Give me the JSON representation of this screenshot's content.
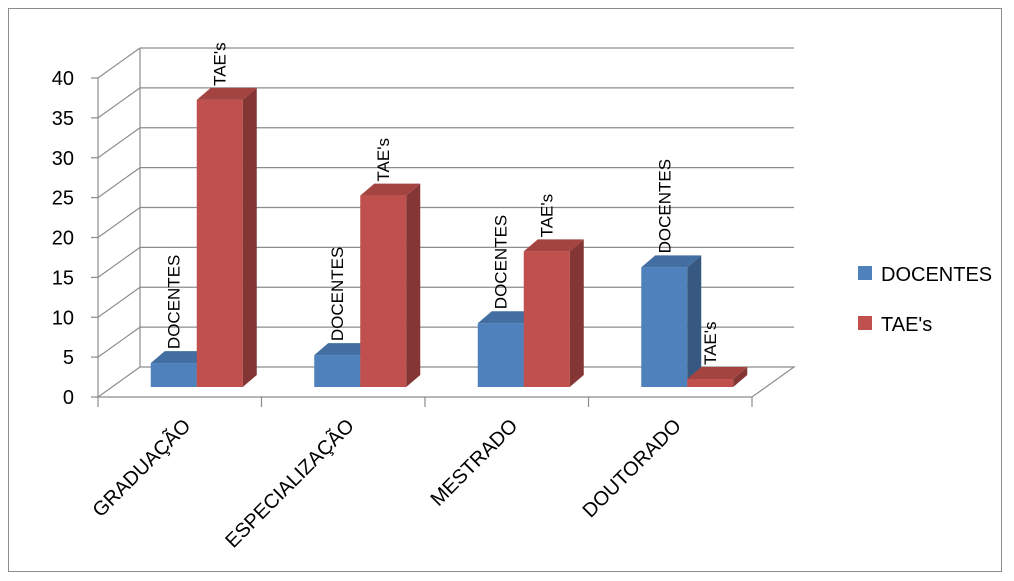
{
  "chart_data": {
    "type": "bar",
    "style": "3d-clustered-column",
    "categories": [
      "GRADUAÇÃO",
      "ESPECIALIZAÇÃO",
      "MESTRADO",
      "DOUTORADO"
    ],
    "series": [
      {
        "name": "DOCENTES",
        "values": [
          3,
          4,
          8,
          15
        ],
        "color": "#4f81bd",
        "data_label": "DOCENTES"
      },
      {
        "name": "TAE's",
        "values": [
          36,
          24,
          17,
          1
        ],
        "color": "#c0504d",
        "data_label": "TAE's"
      }
    ],
    "yticks": [
      0,
      5,
      10,
      15,
      20,
      25,
      30,
      35,
      40
    ],
    "ylim": [
      0,
      40
    ],
    "grid": true,
    "legend_position": "right",
    "title": "",
    "xlabel": "",
    "ylabel": ""
  }
}
